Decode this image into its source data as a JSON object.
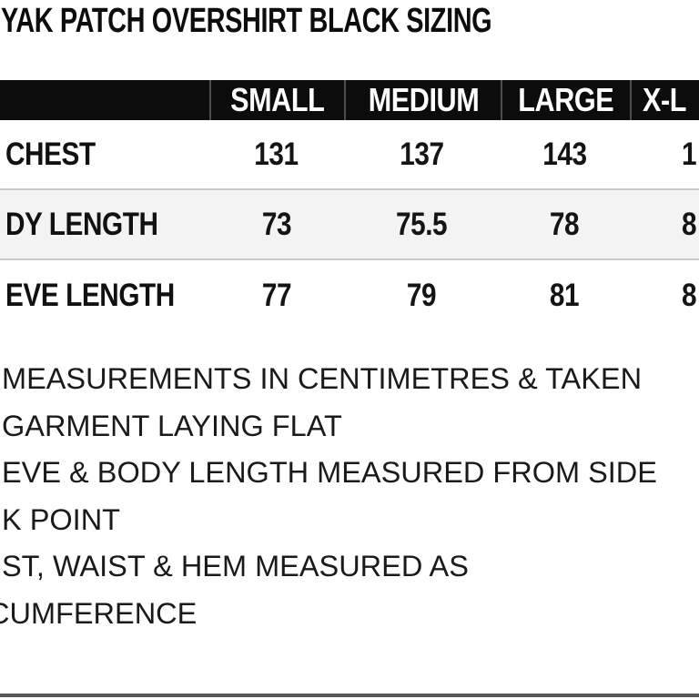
{
  "title": "YAK PATCH OVERSHIRT BLACK SIZING",
  "size_table": {
    "columns": [
      "SMALL",
      "MEDIUM",
      "LARGE",
      "X-L"
    ],
    "rows": [
      {
        "label": "CHEST",
        "values": [
          "131",
          "137",
          "143",
          "1"
        ]
      },
      {
        "label": "DY LENGTH",
        "values": [
          "73",
          "75.5",
          "78",
          "8"
        ]
      },
      {
        "label": "EVE LENGTH",
        "values": [
          "77",
          "79",
          "81",
          "8"
        ]
      }
    ]
  },
  "notes": [
    "MEASUREMENTS IN CENTIMETRES & TAKEN",
    "GARMENT LAYING FLAT",
    "EVE & BODY LENGTH MEASURED FROM SIDE",
    "K POINT",
    "ST, WAIST & HEM MEASURED AS",
    "CUMFERENCE"
  ],
  "colors": {
    "header_bg": "#0c0c0c",
    "header_text": "#ffffff",
    "alt_row_bg": "#f3f3f3",
    "row_border": "#c9c9c9",
    "bottom_bar": "#57575b",
    "text": "#141414"
  }
}
